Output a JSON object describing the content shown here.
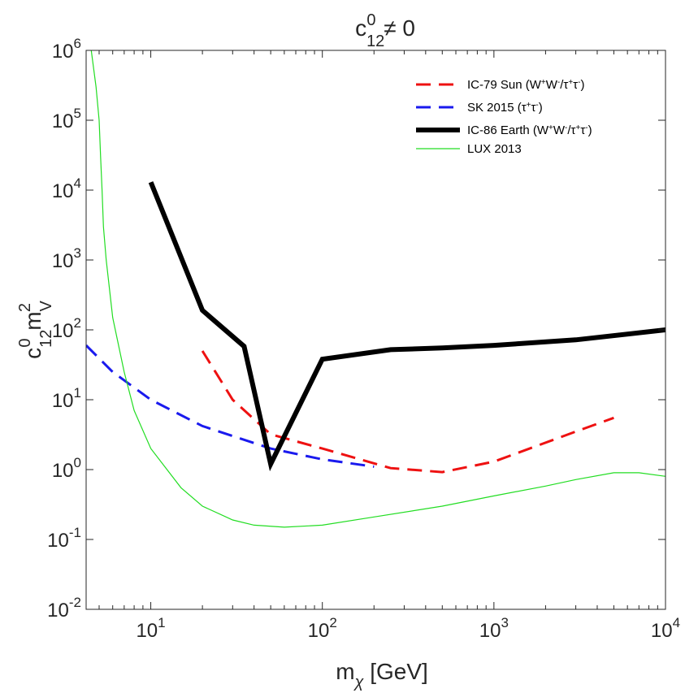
{
  "chart_data": {
    "type": "line",
    "title": {
      "base": "c",
      "sup": "0",
      "sub": "12",
      "rest": " ≠ 0"
    },
    "xlabel": {
      "base": "m",
      "sub": "χ",
      "rest": " [GeV]"
    },
    "ylabel": {
      "base": "c",
      "sup": "0",
      "sub": "12",
      "mid": " m",
      "sup2": "2",
      "sub2": "V"
    },
    "xscale": "log",
    "yscale": "log",
    "xlim": [
      4.2,
      10000
    ],
    "ylim": [
      0.01,
      1000000
    ],
    "xticks": [
      10,
      100,
      1000,
      10000
    ],
    "xtick_exponents": [
      "1",
      "2",
      "3",
      "4"
    ],
    "yticks": [
      0.01,
      0.1,
      1,
      10,
      100,
      1000,
      10000,
      100000,
      1000000
    ],
    "ytick_exponents": [
      "-2",
      "-1",
      "0",
      "1",
      "2",
      "3",
      "4",
      "5",
      "6"
    ],
    "tick_base": "10",
    "legend_position": "top-right",
    "series": [
      {
        "name": "IC-79 Sun (W+W-/τ+τ-)",
        "legend_parts": [
          {
            "t": "IC-79 Sun (W"
          },
          {
            "t": "+",
            "sup": true
          },
          {
            "t": "W"
          },
          {
            "t": "-",
            "sup": true
          },
          {
            "t": "/τ"
          },
          {
            "t": "+",
            "sup": true
          },
          {
            "t": "τ"
          },
          {
            "t": "-",
            "sup": true
          },
          {
            "t": ")"
          }
        ],
        "color": "#ee1111",
        "style": "dashed",
        "width": 3,
        "x": [
          20,
          30,
          50,
          100,
          250,
          500,
          1000,
          3000,
          5000
        ],
        "y": [
          50,
          10,
          3.2,
          2.0,
          1.05,
          0.92,
          1.3,
          3.5,
          5.5
        ]
      },
      {
        "name": "SK 2015 (τ+τ-)",
        "legend_parts": [
          {
            "t": "SK 2015 (τ"
          },
          {
            "t": "+",
            "sup": true
          },
          {
            "t": "τ"
          },
          {
            "t": "-",
            "sup": true
          },
          {
            "t": ")"
          }
        ],
        "color": "#1a1aee",
        "style": "dashed",
        "width": 3,
        "x": [
          4.2,
          6,
          10,
          20,
          50,
          100,
          200
        ],
        "y": [
          60,
          25,
          10,
          4.2,
          2.0,
          1.4,
          1.1
        ]
      },
      {
        "name": "IC-86 Earth (W+W-/τ+τ-)",
        "legend_parts": [
          {
            "t": "IC-86 Earth (W"
          },
          {
            "t": "+",
            "sup": true
          },
          {
            "t": "W"
          },
          {
            "t": "-",
            "sup": true
          },
          {
            "t": "/τ"
          },
          {
            "t": "+",
            "sup": true
          },
          {
            "t": "τ"
          },
          {
            "t": "-",
            "sup": true
          },
          {
            "t": ")"
          }
        ],
        "color": "#000000",
        "style": "solid",
        "width": 6,
        "x": [
          10,
          20,
          35,
          50,
          100,
          250,
          500,
          1000,
          3000,
          10000
        ],
        "y": [
          13000,
          190,
          58,
          1.2,
          38,
          52,
          55,
          60,
          72,
          100
        ]
      },
      {
        "name": "LUX 2013",
        "legend_parts": [
          {
            "t": "LUX 2013"
          }
        ],
        "color": "#22dd22",
        "style": "solid",
        "width": 1.2,
        "x": [
          4.5,
          4.8,
          5.0,
          5.1,
          5.2,
          5.3,
          5.5,
          6,
          7,
          8,
          10,
          15,
          20,
          30,
          40,
          60,
          100,
          200,
          500,
          1000,
          2000,
          3000,
          5000,
          7000,
          10000
        ],
        "y": [
          1000000,
          300000,
          100000,
          30000,
          10000,
          3000,
          1000,
          150,
          25,
          7,
          2,
          0.55,
          0.3,
          0.19,
          0.16,
          0.15,
          0.16,
          0.21,
          0.3,
          0.42,
          0.58,
          0.72,
          0.9,
          0.9,
          0.8
        ]
      }
    ]
  }
}
